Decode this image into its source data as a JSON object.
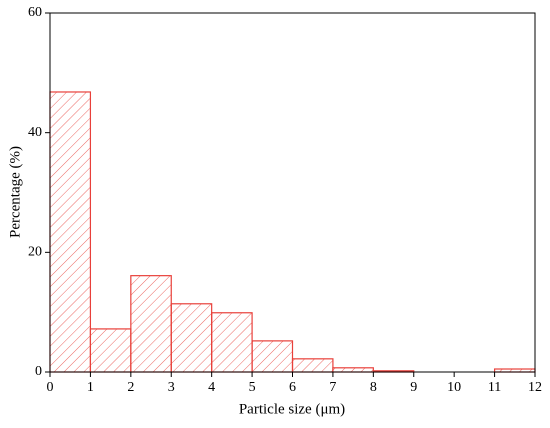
{
  "chart_data": {
    "type": "histogram",
    "x_label": "Particle size (μm)",
    "y_label": "Percentage (%)",
    "bins": [
      0,
      1,
      2,
      3,
      4,
      5,
      6,
      7,
      8,
      9,
      10,
      11,
      12
    ],
    "values": [
      46.8,
      7.2,
      16.1,
      11.4,
      9.9,
      5.2,
      2.2,
      0.7,
      0.2,
      0,
      0,
      0.5
    ],
    "color": "#e8403a",
    "xlim": [
      0,
      12
    ],
    "xticks": [
      0,
      1,
      2,
      3,
      4,
      5,
      6,
      7,
      8,
      9,
      10,
      11,
      12
    ],
    "ylim": [
      0,
      60
    ],
    "yticks": [
      0,
      20,
      40,
      60
    ]
  }
}
